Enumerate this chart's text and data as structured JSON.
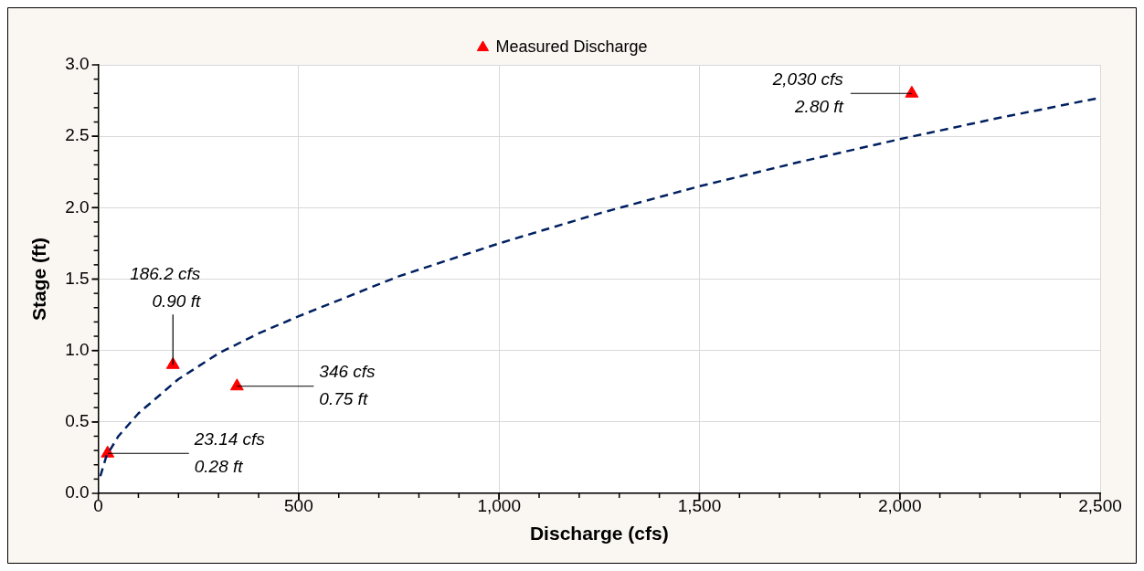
{
  "chart_data": {
    "type": "scatter",
    "xlabel": "Discharge (cfs)",
    "ylabel": "Stage (ft)",
    "xlim": [
      0,
      2500
    ],
    "xticks": [
      0,
      500,
      {
        "value": 1000,
        "label": "1,000"
      },
      {
        "value": 1500,
        "label": "1,500"
      },
      {
        "value": 2000,
        "label": "2,000"
      },
      {
        "value": 2500,
        "label": "2,500"
      }
    ],
    "ylim": [
      0,
      3
    ],
    "yticks": [
      {
        "value": 0,
        "label": "0.0"
      },
      0.5,
      {
        "value": 1,
        "label": "1.0"
      },
      1.5,
      {
        "value": 2,
        "label": "2.0"
      },
      2.5,
      {
        "value": 3,
        "label": "3.0"
      }
    ],
    "grid": true,
    "legend": "top",
    "series": [
      {
        "type": "line",
        "color": "#002060",
        "line_style": "dashed",
        "marker": "none",
        "x": [
          5,
          20,
          50,
          100,
          200,
          300,
          400,
          500,
          750,
          1000,
          1250,
          1500,
          1750,
          2000,
          2250,
          2500
        ],
        "values": [
          0.12,
          0.26,
          0.4,
          0.56,
          0.8,
          0.98,
          1.12,
          1.24,
          1.52,
          1.75,
          1.96,
          2.15,
          2.32,
          2.48,
          2.63,
          2.77
        ]
      },
      {
        "type": "scatter",
        "name": "Measured Discharge",
        "color": "#ff0000",
        "marker": "triangle",
        "x": [
          23.14,
          186.2,
          346,
          2030
        ],
        "values": [
          0.28,
          0.9,
          0.75,
          2.8
        ]
      }
    ],
    "annotations": [
      {
        "text": "23.14 cfs\n0.28 ft",
        "x": 23.14,
        "y": 0.28
      },
      {
        "text": "186.2 cfs\n0.90 ft",
        "x": 186.2,
        "y": 0.9
      },
      {
        "text": "346 cfs\n0.75 ft",
        "x": 346,
        "y": 0.75
      },
      {
        "text": "2,030 cfs\n2.80 ft",
        "x": 2030,
        "y": 2.8
      }
    ]
  }
}
